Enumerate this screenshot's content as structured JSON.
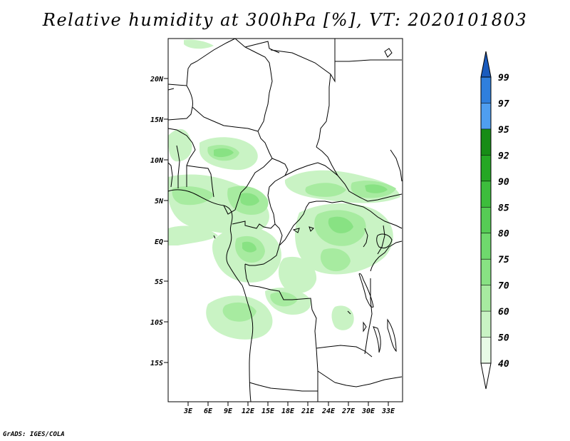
{
  "title": "Relative humidity at 300hPa [%], VT: 2020101803",
  "credit": "GrADS: IGES/COLA",
  "map": {
    "lat_labels": [
      "20N",
      "15N",
      "10N",
      "5N",
      "EQ",
      "5S",
      "10S",
      "15S"
    ],
    "lon_labels": [
      "3E",
      "6E",
      "9E",
      "12E",
      "15E",
      "18E",
      "21E",
      "24E",
      "27E",
      "30E",
      "33E"
    ]
  },
  "colorbar": {
    "levels": [
      "40",
      "50",
      "60",
      "70",
      "75",
      "80",
      "85",
      "90",
      "92",
      "95",
      "97",
      "99"
    ],
    "colors": [
      "#e8fbe6",
      "#c9f3c4",
      "#a7eba0",
      "#88e283",
      "#6fd96d",
      "#56cc55",
      "#3dbd3c",
      "#25a724",
      "#178c16",
      "#4f9ef0",
      "#2f7fdd",
      "#1a5bbd"
    ],
    "below_color": "#ffffff"
  }
}
